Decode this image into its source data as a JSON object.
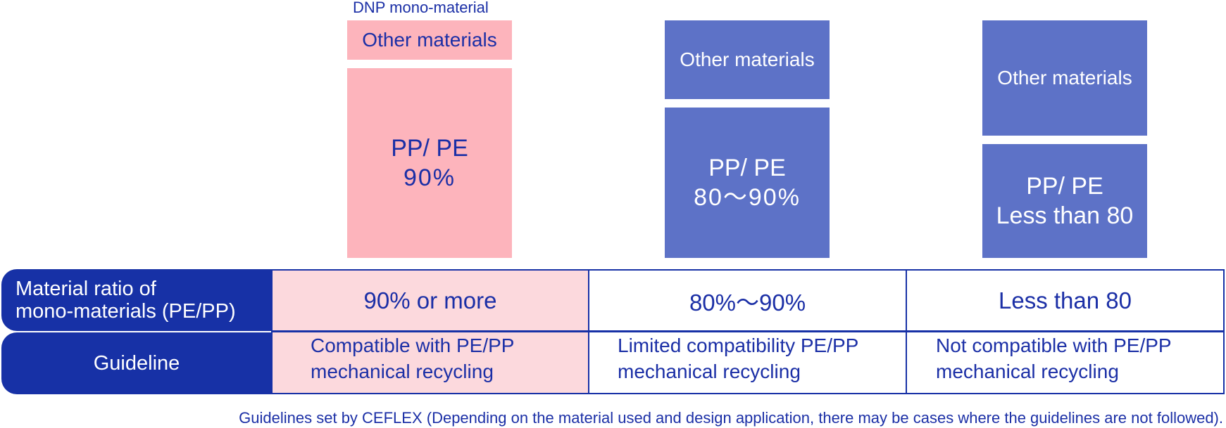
{
  "header": {
    "dnp_label": "DNP mono-material"
  },
  "columns": [
    {
      "other_label": "Other materials",
      "main_line1": "PP/ PE",
      "main_line2": "90%",
      "ratio": "90% or more",
      "guideline_line1": "Compatible with PE/PP",
      "guideline_line2": "mechanical recycling",
      "color": "#fdb4bc"
    },
    {
      "other_label": "Other materials",
      "main_line1": "PP/ PE",
      "main_line2": "80～90%",
      "ratio": "80%～90%",
      "guideline_line1": "Limited compatibility PE/PP",
      "guideline_line2": "mechanical recycling",
      "color": "#5d72c7"
    },
    {
      "other_label": "Other materials",
      "main_line1": "PP/ PE",
      "main_line2": "Less than 80",
      "ratio": "Less than 80",
      "guideline_line1": "Not compatible with PE/PP",
      "guideline_line2": "mechanical recycling",
      "color": "#5d72c7"
    }
  ],
  "table": {
    "row1_header_line1": "Material ratio of",
    "row1_header_line2": "mono-materials (PE/PP)",
    "row2_header": "Guideline"
  },
  "footnote": "Guidelines set by CEFLEX (Depending on the material used and design application, there may be cases where the guidelines are not followed).",
  "colors": {
    "dark_blue": "#1731a6",
    "pink": "#fdb4bc",
    "light_pink": "#fcd9dd",
    "medium_blue": "#5d72c7"
  }
}
